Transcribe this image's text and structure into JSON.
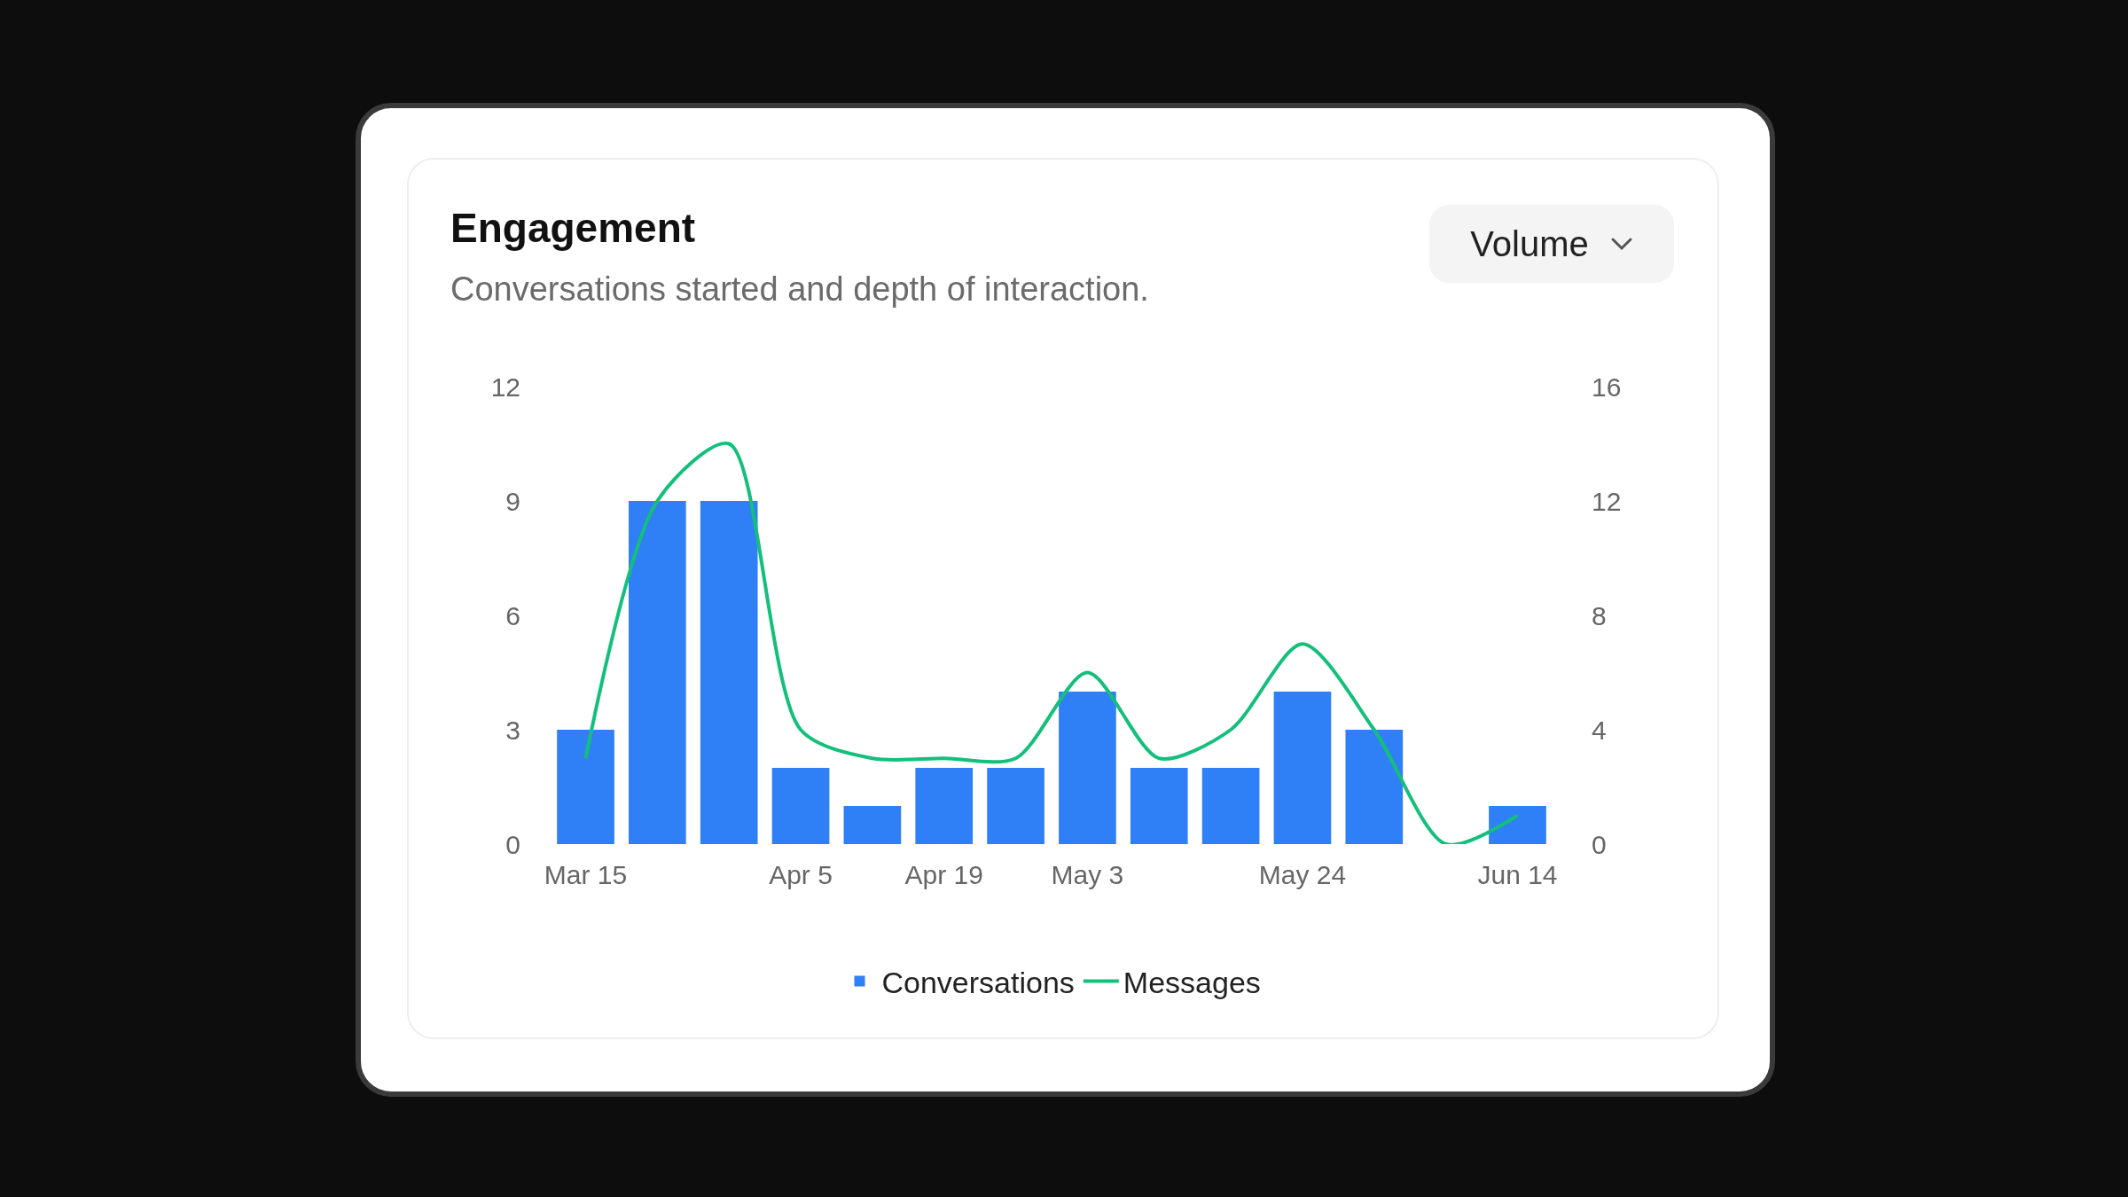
{
  "chart_data": {
    "type": "bar",
    "title": "Engagement",
    "subtitle": "Conversations started and depth of interaction.",
    "annotations": [
      "Volume"
    ],
    "categories": [
      "Mar 15",
      null,
      null,
      "Apr 5",
      null,
      "Apr 19",
      null,
      "May 3",
      null,
      null,
      "May 24",
      null,
      null,
      "Jun 14"
    ],
    "series": [
      {
        "name": "Conversations",
        "color": "#2f7ff6",
        "values": [
          3,
          9,
          9,
          2,
          1,
          2,
          2,
          4,
          2,
          2,
          4,
          3,
          0,
          1
        ]
      },
      {
        "name": "Messages",
        "type": "line",
        "axis": "y2",
        "color": "#14bf7c",
        "values": [
          3,
          12,
          14,
          4,
          3,
          3,
          3,
          6,
          3,
          4,
          7,
          4,
          0,
          1
        ]
      }
    ],
    "ylim": [
      0,
      12
    ],
    "yticks": [
      0,
      3,
      6,
      9,
      12
    ],
    "y2lim": [
      0,
      16
    ],
    "y2ticks": [
      0,
      4,
      8,
      12,
      16
    ],
    "legend": "bottom",
    "marker": "none"
  }
}
